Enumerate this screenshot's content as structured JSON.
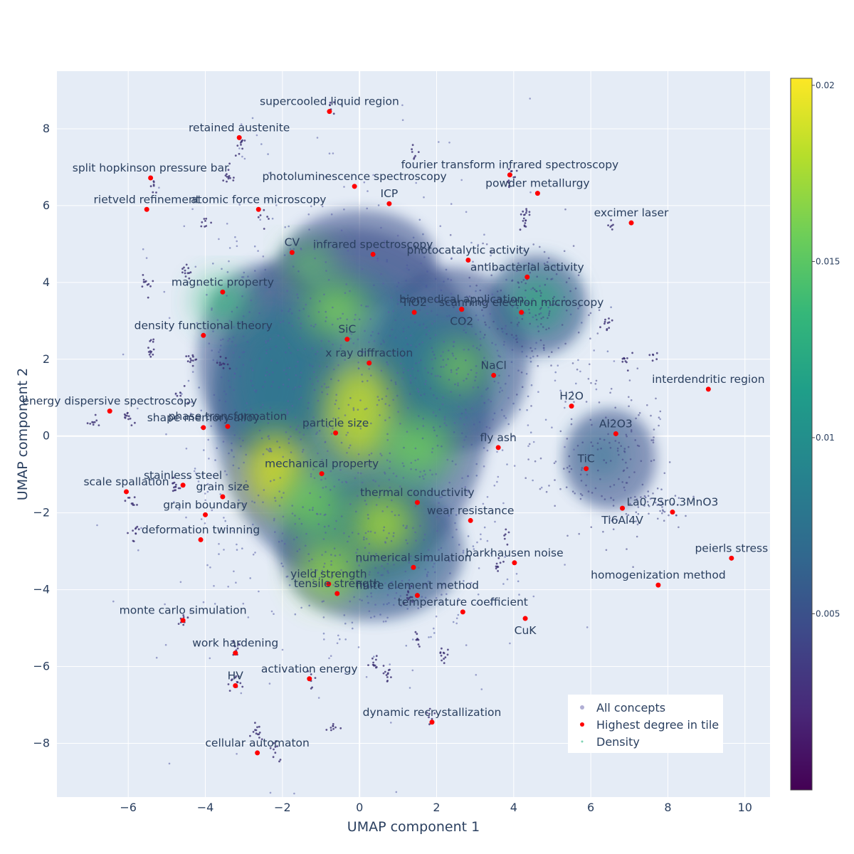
{
  "chart_data": {
    "type": "scatter",
    "title": "",
    "xlabel": "UMAP component 1",
    "ylabel": "UMAP component 2",
    "xlim": [
      -7.85,
      10.65
    ],
    "ylim": [
      -9.4,
      9.5
    ],
    "x_ticks": [
      -6,
      -4,
      -2,
      0,
      2,
      4,
      6,
      8,
      10
    ],
    "y_ticks": [
      -8,
      -6,
      -4,
      -2,
      0,
      2,
      4,
      6,
      8
    ],
    "x_tick_labels": [
      "−6",
      "−4",
      "−2",
      "0",
      "2",
      "4",
      "6",
      "8",
      "10"
    ],
    "y_tick_labels": [
      "−8",
      "−6",
      "−4",
      "−2",
      "0",
      "2",
      "4",
      "6",
      "8"
    ],
    "grid": true,
    "legend_position": "bottom-right",
    "legend": [
      {
        "name": "All concepts",
        "color": "#b0aed4"
      },
      {
        "name": "Highest degree in tile",
        "color": "#ff0000"
      },
      {
        "name": "Density",
        "color": "#7fd3b3"
      }
    ],
    "colorbar": {
      "colorscale": "viridis",
      "range": [
        0,
        0.0202
      ],
      "ticks": [
        0.005,
        0.01,
        0.015,
        0.02
      ],
      "tick_labels": [
        "0.005",
        "0.01",
        "0.015",
        "0.02"
      ]
    },
    "highlight_color": "#ff0000",
    "points": [
      {
        "label": "supercooled liquid region",
        "x": -0.78,
        "y": 8.45
      },
      {
        "label": "retained austenite",
        "x": -3.12,
        "y": 7.77
      },
      {
        "label": "split hopkinson pressure bar",
        "x": -5.42,
        "y": 6.72
      },
      {
        "label": "photoluminescence spectroscopy",
        "x": -0.13,
        "y": 6.5
      },
      {
        "label": "fourier transform infrared spectroscopy",
        "x": 3.9,
        "y": 6.8
      },
      {
        "label": "powder metallurgy",
        "x": 4.62,
        "y": 6.32
      },
      {
        "label": "ICP",
        "x": 0.77,
        "y": 6.05
      },
      {
        "label": "atomic force microscopy",
        "x": -2.62,
        "y": 5.9
      },
      {
        "label": "rietveld refinement",
        "x": -5.52,
        "y": 5.9
      },
      {
        "label": "excimer laser",
        "x": 7.05,
        "y": 5.55
      },
      {
        "label": "CV",
        "x": -1.75,
        "y": 4.78
      },
      {
        "label": "infrared spectroscopy",
        "x": 0.35,
        "y": 4.73
      },
      {
        "label": "photocatalytic activity",
        "x": 2.82,
        "y": 4.58
      },
      {
        "label": "antibacterial activity",
        "x": 4.35,
        "y": 4.14
      },
      {
        "label": "magnetic property",
        "x": -3.55,
        "y": 3.75
      },
      {
        "label": "TiO2",
        "x": 1.42,
        "y": 3.22
      },
      {
        "label": "biomedical application",
        "x": 2.65,
        "y": 3.3
      },
      {
        "label": "scanning electron microscopy",
        "x": 4.2,
        "y": 3.22
      },
      {
        "label": "CO2",
        "x": 2.65,
        "y": 3.3,
        "label_below": true
      },
      {
        "label": "density functional theory",
        "x": -4.05,
        "y": 2.62
      },
      {
        "label": "SiC",
        "x": -0.32,
        "y": 2.52
      },
      {
        "label": "x ray diffraction",
        "x": 0.25,
        "y": 1.9
      },
      {
        "label": "NaCl",
        "x": 3.48,
        "y": 1.58
      },
      {
        "label": "interdendritic region",
        "x": 9.05,
        "y": 1.22
      },
      {
        "label": "H2O",
        "x": 5.5,
        "y": 0.78
      },
      {
        "label": "energy dispersive spectroscopy",
        "x": -6.48,
        "y": 0.65
      },
      {
        "label": "phase transformation",
        "x": -3.42,
        "y": 0.25
      },
      {
        "label": "shape memory alloy",
        "x": -4.05,
        "y": 0.22
      },
      {
        "label": "particle size",
        "x": -0.62,
        "y": 0.08
      },
      {
        "label": "Al2O3",
        "x": 6.65,
        "y": 0.06
      },
      {
        "label": "fly ash",
        "x": 3.6,
        "y": -0.3
      },
      {
        "label": "TiC",
        "x": 5.88,
        "y": -0.85
      },
      {
        "label": "mechanical property",
        "x": -0.98,
        "y": -0.98
      },
      {
        "label": "stainless steel",
        "x": -4.58,
        "y": -1.28
      },
      {
        "label": "grain size",
        "x": -3.55,
        "y": -1.58
      },
      {
        "label": "scale spallation",
        "x": -6.05,
        "y": -1.45
      },
      {
        "label": "thermal conductivity",
        "x": 1.5,
        "y": -1.73
      },
      {
        "label": "La0.7Sr0.3MnO3",
        "x": 8.12,
        "y": -1.98
      },
      {
        "label": "Ti6Al4V",
        "x": 6.82,
        "y": -1.88,
        "label_below": true
      },
      {
        "label": "grain boundary",
        "x": -4.0,
        "y": -2.05
      },
      {
        "label": "wear resistance",
        "x": 2.88,
        "y": -2.2
      },
      {
        "label": "deformation twinning",
        "x": -4.12,
        "y": -2.7
      },
      {
        "label": "barkhausen noise",
        "x": 4.02,
        "y": -3.3
      },
      {
        "label": "peierls stress",
        "x": 9.65,
        "y": -3.18
      },
      {
        "label": "numerical simulation",
        "x": 1.4,
        "y": -3.42
      },
      {
        "label": "homogenization method",
        "x": 7.75,
        "y": -3.88
      },
      {
        "label": "yield strength",
        "x": -0.8,
        "y": -3.85
      },
      {
        "label": "finite element method",
        "x": 1.5,
        "y": -4.15
      },
      {
        "label": "tensile strength",
        "x": -0.58,
        "y": -4.1
      },
      {
        "label": "temperature coefficient",
        "x": 2.68,
        "y": -4.58
      },
      {
        "label": "monte carlo simulation",
        "x": -4.58,
        "y": -4.8
      },
      {
        "label": "CuK",
        "x": 4.3,
        "y": -4.75,
        "label_below": true
      },
      {
        "label": "work hardening",
        "x": -3.22,
        "y": -5.65
      },
      {
        "label": "activation energy",
        "x": -1.3,
        "y": -6.32
      },
      {
        "label": "HV",
        "x": -3.22,
        "y": -6.5
      },
      {
        "label": "dynamic recrystallization",
        "x": 1.88,
        "y": -7.45
      },
      {
        "label": "cellular automaton",
        "x": -2.65,
        "y": -8.25
      }
    ]
  }
}
